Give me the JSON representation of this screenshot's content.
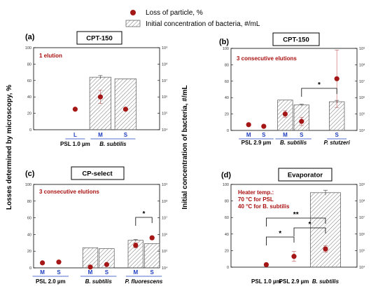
{
  "figure": {
    "ylabel_left": "Losses determined by microscopy, %",
    "ylabel_right": "Initial concentration of bacteria, #/mL",
    "legend": {
      "marker_label": "Loss of particle, %",
      "bar_label": "Initial concentration of bacteria, #/mL"
    },
    "colors": {
      "marker": "#a51717",
      "bar_hatch": "#666666",
      "blue_label": "#1f3fbf",
      "annotation": "#a11111"
    }
  },
  "chart_data": [
    {
      "type": "bar",
      "panel": "(a)",
      "title": "CPT-150",
      "annotation": "1 elution",
      "ylim_left": [
        0,
        100
      ],
      "yticks_left": [
        0,
        20,
        40,
        60,
        80,
        100
      ],
      "ylim_right_log10": [
        4,
        9
      ],
      "yticks_right": [
        "10⁴",
        "10⁵",
        "10⁶",
        "10⁷",
        "10⁸",
        "10⁹"
      ],
      "categories": [
        "L",
        "M",
        "S"
      ],
      "groups": [
        {
          "label": "PSL 1.0 µm",
          "italic": false,
          "members": [
            0
          ]
        },
        {
          "label": "B. subtilis",
          "italic": true,
          "members": [
            1,
            2
          ]
        }
      ],
      "loss_percent": [
        25,
        40,
        25
      ],
      "loss_err": [
        0,
        8,
        0
      ],
      "bacteria_concentration_log10": [
        null,
        7.2,
        7.1
      ],
      "bacteria_err_log10": [
        0,
        0.1,
        0
      ],
      "significance": []
    },
    {
      "type": "bar",
      "panel": "(b)",
      "title": "CPT-150",
      "annotation": "3 consecutive elutions",
      "ylim_left": [
        0,
        100
      ],
      "yticks_left": [
        0,
        20,
        40,
        60,
        80,
        100
      ],
      "ylim_right_log10": [
        4,
        9
      ],
      "yticks_right": [
        "10⁴",
        "10⁵",
        "10⁶",
        "10⁷",
        "10⁸",
        "10⁹"
      ],
      "categories": [
        "M",
        "S",
        "M",
        "S",
        "S"
      ],
      "groups": [
        {
          "label": "PSL 2.9 µm",
          "italic": false,
          "members": [
            0,
            1
          ]
        },
        {
          "label": "B. subtilis",
          "italic": true,
          "members": [
            2,
            3
          ]
        },
        {
          "label": "P. stutzeri",
          "italic": true,
          "members": [
            4
          ]
        }
      ],
      "loss_percent": [
        7,
        5,
        20,
        11,
        63
      ],
      "loss_err": [
        0,
        0,
        4,
        5,
        35
      ],
      "bacteria_concentration_log10": [
        null,
        null,
        5.85,
        5.55,
        5.75
      ],
      "bacteria_err_log10": [
        0,
        0,
        0,
        0.05,
        0.08
      ],
      "significance": [
        {
          "from": 3,
          "to": 4,
          "label": "*"
        }
      ]
    },
    {
      "type": "bar",
      "panel": "(c)",
      "title": "CP-select",
      "annotation": "3 consecutive elutions",
      "ylim_left": [
        0,
        100
      ],
      "yticks_left": [
        0,
        20,
        40,
        60,
        80,
        100
      ],
      "ylim_right_log10": [
        4,
        9
      ],
      "yticks_right": [
        "10⁴",
        "10⁵",
        "10⁶",
        "10⁷",
        "10⁸",
        "10⁹"
      ],
      "categories": [
        "M",
        "S",
        "M",
        "S",
        "M",
        "S"
      ],
      "groups": [
        {
          "label": "PSL 2.0 µm",
          "italic": false,
          "members": [
            0,
            1
          ]
        },
        {
          "label": "B. subtilis",
          "italic": true,
          "members": [
            2,
            3
          ]
        },
        {
          "label": "P. fluorescens",
          "italic": true,
          "members": [
            4,
            5
          ]
        }
      ],
      "loss_percent": [
        6,
        7,
        1,
        4,
        27,
        36
      ],
      "loss_err": [
        0,
        0,
        0,
        1,
        3,
        2
      ],
      "bacteria_concentration_log10": [
        null,
        null,
        5.2,
        5.15,
        5.65,
        5.45
      ],
      "bacteria_err_log10": [
        0,
        0,
        0,
        0,
        0.05,
        0
      ],
      "significance": [
        {
          "from": 4,
          "to": 5,
          "label": "*"
        }
      ]
    },
    {
      "type": "bar",
      "panel": "(d)",
      "title": "Evaporator",
      "annotation_lines": [
        "Heater temp.:",
        "70 °C for PSL",
        "40 °C for B. subtilis"
      ],
      "ylim_left": [
        0,
        100
      ],
      "yticks_left": [
        0,
        20,
        40,
        60,
        80,
        100
      ],
      "ylim_right_log10": [
        4,
        9
      ],
      "yticks_right": [
        "10⁴",
        "10⁵",
        "10⁶",
        "10⁷",
        "10⁸",
        "10⁹"
      ],
      "categories": [
        "",
        "",
        ""
      ],
      "groups": [
        {
          "label": "PSL 1.0 µm",
          "italic": false,
          "members": [
            0
          ]
        },
        {
          "label": "PSL 2.9 µm",
          "italic": false,
          "members": [
            1
          ]
        },
        {
          "label": "B. subtilis",
          "italic": true,
          "members": [
            2
          ]
        }
      ],
      "loss_percent": [
        3,
        13,
        22
      ],
      "loss_err": [
        1,
        6,
        4
      ],
      "bacteria_concentration_log10": [
        null,
        null,
        8.5
      ],
      "bacteria_err_log10": [
        0,
        0,
        0.15
      ],
      "significance": [
        {
          "from": 0,
          "to": 1,
          "label": "*"
        },
        {
          "from": 1,
          "to": 2,
          "label": "*"
        },
        {
          "from": 0,
          "to": 2,
          "label": "**"
        }
      ]
    }
  ]
}
